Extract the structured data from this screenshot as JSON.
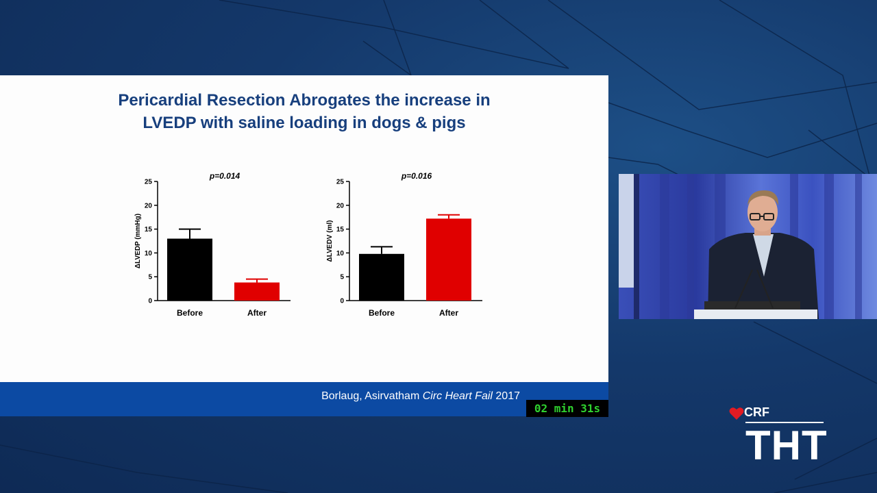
{
  "slide": {
    "title_line1": "Pericardial Resection Abrogates the increase in",
    "title_line2": "LVEDP with saline loading in dogs & pigs",
    "citation_authors": "Borlaug, Asirvatham ",
    "citation_journal": "Circ Heart Fail",
    "citation_year": " 2017"
  },
  "timer": {
    "text": "02 min 31s"
  },
  "logo": {
    "crf": "CRF",
    "tht": "THT",
    "brand_color": "#e31b23"
  },
  "colors": {
    "before": "#000000",
    "after": "#e00000",
    "title": "#173f7d",
    "footer": "#0c4aa3"
  },
  "chart_data": [
    {
      "type": "bar",
      "categories": [
        "Before",
        "After"
      ],
      "values": [
        13,
        3.8
      ],
      "error_upper": [
        15,
        4.5
      ],
      "annotation": "p=0.014",
      "ylabel": "ΔLVEDP (mmHg)",
      "xlabel": "",
      "ylim": [
        0,
        25
      ],
      "yticks": [
        0,
        5,
        10,
        15,
        20,
        25
      ],
      "bar_colors": [
        "#000000",
        "#e00000"
      ]
    },
    {
      "type": "bar",
      "categories": [
        "Before",
        "After"
      ],
      "values": [
        9.8,
        17.2
      ],
      "error_upper": [
        11.3,
        18
      ],
      "annotation": "p=0.016",
      "ylabel": "ΔLVEDV (ml)",
      "xlabel": "",
      "ylim": [
        0,
        25
      ],
      "yticks": [
        0,
        5,
        10,
        15,
        20,
        25
      ],
      "bar_colors": [
        "#000000",
        "#e00000"
      ]
    }
  ]
}
